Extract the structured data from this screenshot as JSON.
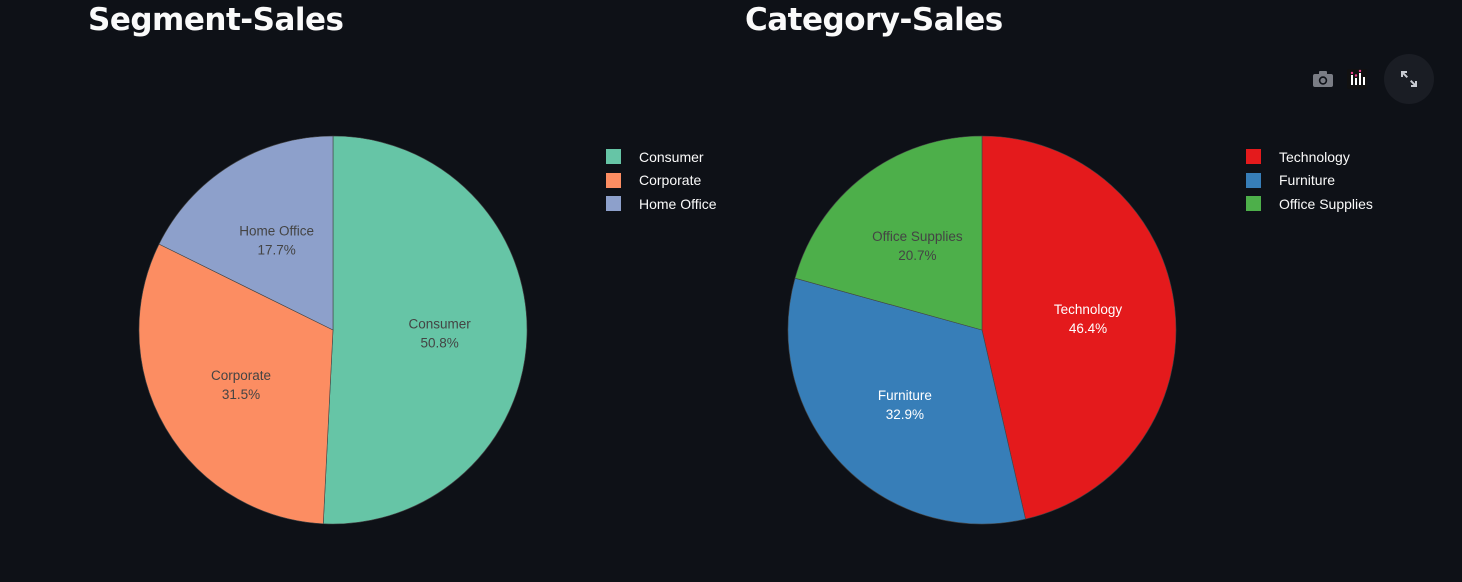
{
  "colors": {
    "background": "#0e1117",
    "text": "#fafafa"
  },
  "toolbar": {
    "icons": [
      "camera-icon",
      "bar-chart-icon",
      "fullscreen-icon"
    ]
  },
  "chart_data": [
    {
      "type": "pie",
      "title": "Segment-Sales",
      "labels": [
        "Consumer",
        "Corporate",
        "Home Office"
      ],
      "values": [
        50.8,
        31.5,
        17.7
      ],
      "value_labels": [
        "50.8%",
        "31.5%",
        "17.7%"
      ],
      "colors": [
        "#66c5a6",
        "#fc8d62",
        "#8da0cb"
      ],
      "label_colors": [
        "#444444",
        "#444444",
        "#444444"
      ],
      "legend_position": "top-right"
    },
    {
      "type": "pie",
      "title": "Category-Sales",
      "labels": [
        "Technology",
        "Furniture",
        "Office Supplies"
      ],
      "values": [
        46.4,
        32.9,
        20.7
      ],
      "value_labels": [
        "46.4%",
        "32.9%",
        "20.7%"
      ],
      "colors": [
        "#e41a1c",
        "#377eb8",
        "#4daf4a"
      ],
      "label_colors": [
        "#ffffff",
        "#ffffff",
        "#444444"
      ],
      "legend_position": "top-right"
    }
  ]
}
